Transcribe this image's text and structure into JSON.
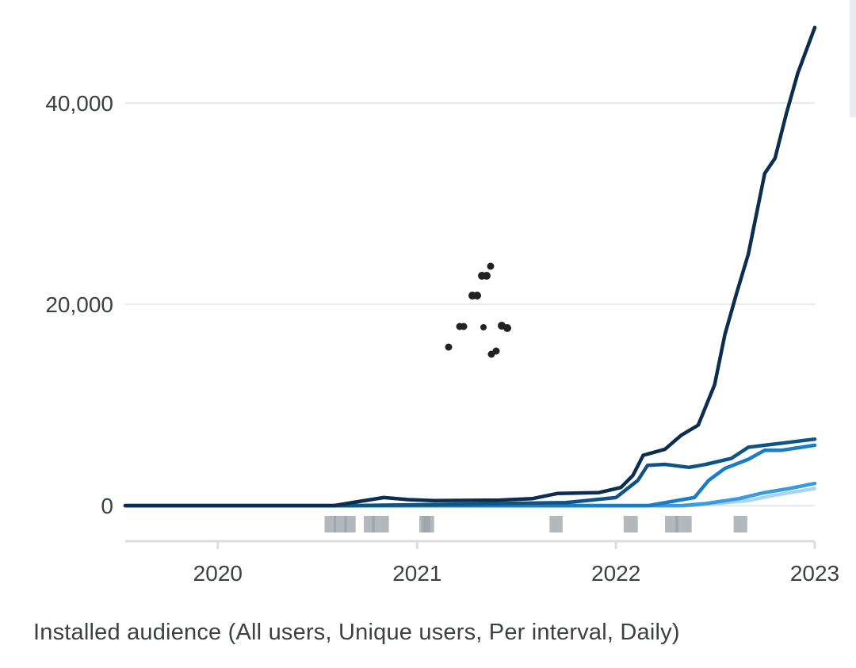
{
  "chart_data": {
    "type": "line",
    "caption": "Installed audience (All users, Unique users, Per interval, Daily)",
    "x_axis": {
      "type": "date",
      "min": "2019-07-15",
      "max": "2023-01-01",
      "tick_labels": [
        "2020",
        "2021",
        "2022",
        "2023"
      ]
    },
    "y_axis": {
      "min": -3300,
      "max": 48500,
      "ticks": [
        0,
        20000,
        40000
      ],
      "tick_labels": [
        "0",
        "20,000",
        "40,000"
      ],
      "grid": true
    },
    "legend": "none",
    "series": [
      {
        "color": "#0b2d4f",
        "points": [
          [
            "2019-07-15",
            0
          ],
          [
            "2020-08-01",
            0
          ],
          [
            "2020-09-15",
            400
          ],
          [
            "2020-11-01",
            800
          ],
          [
            "2020-12-15",
            600
          ],
          [
            "2021-02-01",
            500
          ],
          [
            "2021-06-01",
            550
          ],
          [
            "2021-08-01",
            700
          ],
          [
            "2021-09-15",
            1200
          ],
          [
            "2021-12-01",
            1300
          ],
          [
            "2022-01-10",
            1800
          ],
          [
            "2022-02-01",
            3000
          ],
          [
            "2022-02-20",
            5000
          ],
          [
            "2022-04-01",
            5600
          ],
          [
            "2022-05-01",
            7000
          ],
          [
            "2022-06-01",
            8000
          ],
          [
            "2022-07-01",
            12000
          ],
          [
            "2022-07-20",
            17000
          ],
          [
            "2022-08-10",
            21000
          ],
          [
            "2022-09-01",
            25000
          ],
          [
            "2022-10-01",
            33000
          ],
          [
            "2022-10-20",
            34500
          ],
          [
            "2022-11-10",
            39000
          ],
          [
            "2022-12-01",
            43000
          ],
          [
            "2023-01-01",
            47500
          ]
        ]
      },
      {
        "color": "#0d5485",
        "points": [
          [
            "2019-07-15",
            0
          ],
          [
            "2020-09-01",
            0
          ],
          [
            "2021-06-01",
            200
          ],
          [
            "2021-10-01",
            300
          ],
          [
            "2022-01-01",
            800
          ],
          [
            "2022-02-10",
            2500
          ],
          [
            "2022-02-28",
            4000
          ],
          [
            "2022-04-01",
            4100
          ],
          [
            "2022-05-15",
            3800
          ],
          [
            "2022-06-15",
            4100
          ],
          [
            "2022-08-01",
            4700
          ],
          [
            "2022-09-01",
            5800
          ],
          [
            "2022-10-01",
            6000
          ],
          [
            "2022-11-01",
            6200
          ],
          [
            "2023-01-01",
            6600
          ]
        ]
      },
      {
        "color": "#1a7cc4",
        "points": [
          [
            "2019-07-15",
            0
          ],
          [
            "2022-03-01",
            0
          ],
          [
            "2022-04-01",
            300
          ],
          [
            "2022-05-25",
            800
          ],
          [
            "2022-06-20",
            2500
          ],
          [
            "2022-07-20",
            3700
          ],
          [
            "2022-09-01",
            4600
          ],
          [
            "2022-10-01",
            5500
          ],
          [
            "2022-11-01",
            5500
          ],
          [
            "2023-01-01",
            6000
          ]
        ]
      },
      {
        "color": "#3a9ae0",
        "points": [
          [
            "2019-07-15",
            0
          ],
          [
            "2022-05-01",
            0
          ],
          [
            "2022-06-15",
            200
          ],
          [
            "2022-08-15",
            700
          ],
          [
            "2022-10-01",
            1300
          ],
          [
            "2022-11-15",
            1700
          ],
          [
            "2023-01-01",
            2200
          ]
        ]
      },
      {
        "color": "#a9d4f5",
        "points": [
          [
            "2019-07-15",
            0
          ],
          [
            "2022-05-15",
            0
          ],
          [
            "2022-07-01",
            200
          ],
          [
            "2022-09-01",
            500
          ],
          [
            "2022-10-15",
            1000
          ],
          [
            "2023-01-01",
            1700
          ]
        ]
      }
    ],
    "event_markers": [
      {
        "start": "2020-07-15",
        "end": "2020-08-05"
      },
      {
        "start": "2020-08-01",
        "end": "2020-08-25"
      },
      {
        "start": "2020-08-20",
        "end": "2020-09-10"
      },
      {
        "start": "2020-09-25",
        "end": "2020-10-15"
      },
      {
        "start": "2020-10-10",
        "end": "2020-10-25"
      },
      {
        "start": "2020-10-25",
        "end": "2020-11-10"
      },
      {
        "start": "2021-01-05",
        "end": "2021-01-25"
      },
      {
        "start": "2021-01-10",
        "end": "2021-02-01"
      },
      {
        "start": "2021-09-01",
        "end": "2021-09-25"
      },
      {
        "start": "2022-01-15",
        "end": "2022-02-10"
      },
      {
        "start": "2022-04-01",
        "end": "2022-04-25"
      },
      {
        "start": "2022-04-20",
        "end": "2022-05-01"
      },
      {
        "start": "2022-05-01",
        "end": "2022-05-20"
      },
      {
        "start": "2022-08-05",
        "end": "2022-08-30"
      }
    ],
    "marker_color": "#9aa0a6",
    "grid_color": "#e8eaed",
    "axis_color": "#dadce0",
    "text_color": "#3c4043"
  }
}
